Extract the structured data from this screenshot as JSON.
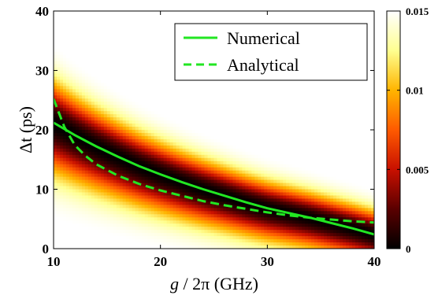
{
  "chart_data": {
    "type": "heatmap",
    "title": "",
    "xlabel_italic": "g",
    "xlabel_rest": " / 2π (GHz)",
    "ylabel": "Δt (ps)",
    "xlim": [
      10,
      40
    ],
    "ylim": [
      0,
      40
    ],
    "xticks": [
      "10",
      "20",
      "30",
      "40"
    ],
    "yticks": [
      "0",
      "10",
      "20",
      "30",
      "40"
    ],
    "colorbar": {
      "range": [
        0,
        0.015
      ],
      "ticks": [
        "0",
        "0.005",
        "0.01",
        "0.015"
      ],
      "colormap": [
        "#000000",
        "#5a0000",
        "#c81000",
        "#ff5a00",
        "#ffb400",
        "#ffff90",
        "#ffffff"
      ]
    },
    "legend_position": "top-right",
    "series": [
      {
        "name": "Numerical",
        "style": "solid",
        "color": "#22e622",
        "x": [
          10,
          12,
          14,
          16,
          18,
          20,
          22,
          24,
          26,
          28,
          30,
          32,
          34,
          36,
          38,
          40
        ],
        "y": [
          21.2,
          19.1,
          17.2,
          15.5,
          13.9,
          12.5,
          11.2,
          10.0,
          8.9,
          7.8,
          6.8,
          6.0,
          5.2,
          4.3,
          3.4,
          2.4
        ]
      },
      {
        "name": "Analytical",
        "style": "dashed",
        "color": "#22e622",
        "x": [
          10,
          11,
          12,
          13,
          14,
          16,
          18,
          20,
          22,
          24,
          26,
          28,
          30,
          32,
          34,
          36,
          38,
          40
        ],
        "y": [
          25.2,
          20.5,
          17.4,
          15.6,
          14.2,
          12.3,
          10.9,
          9.8,
          8.9,
          8.0,
          7.3,
          6.7,
          6.1,
          5.6,
          5.2,
          4.9,
          4.6,
          4.4
        ]
      }
    ]
  }
}
